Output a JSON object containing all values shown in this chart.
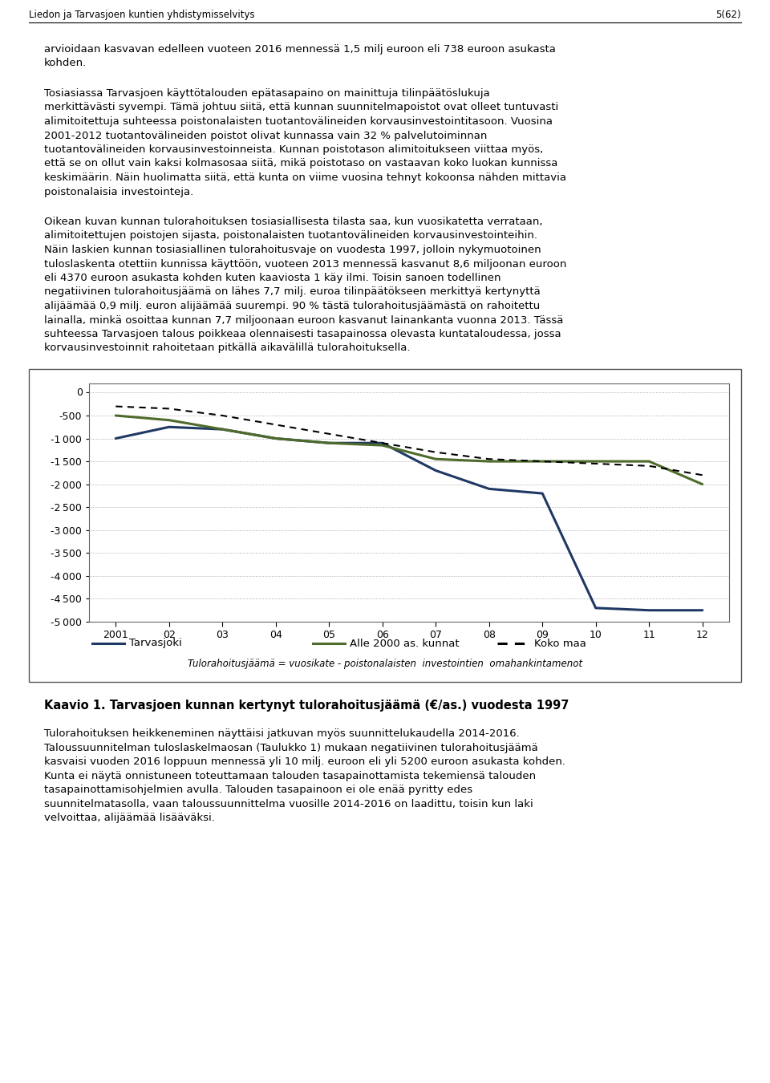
{
  "page_header_left": "Liedon ja Tarvasjoen kuntien yhdistymisselvitys",
  "page_header_right": "5(62)",
  "para1": "arvioidaan kasvavan edelleen vuoteen 2016 mennessä 1,5 milj euroon eli 738 euroon asukasta kohden.",
  "para2": "Tosiasiassa  Tarvasjoen käyttötalouden epätasapaino on mainittuja tilinpäätöslukuja merkittävästi syvempi.  Tämä johtuu siitä, että kunnan suunnitelmapoistot ovat olleet tuntuvasti alimitoitettuja suhteessa poistonalaisten  tuotantovälineiden korvausinvestointitasoon.  Vuosina 2001-2012  tuotantovälineiden poistot olivat kunnassa vain 32 % palvelutoiminnan  tuotantovälineiden korvausinvestoinneista.  Kunnan poistotason alimitoitukseen viittaa myös, että se on ollut vain kaksi kolmasosaa siitä, mikä poistotaso on vastaavan koko luokan kunnissa keskimäärin.  Näin huolimatta siitä, että kunta on viime vuosina tehnyt kokoonsa nähden mittavia poistonalaisia investointeja.",
  "para3": "Oikean kuvan kunnan tulorahoituksen tosiasiallisesta tilasta saa, kun vuosikatetta verrataan,  alimitoitettujen poistojen sijasta, poistonalaisten tuotantovälineiden korvausinvestointeihin.  Näin laskien kunnan tosiasiallinen tulorahoitusvaje on vuodesta 1997, jolloin nykymuotoinen tuloslaskenta otettiin kunnissa käyttöön,  vuoteen 2013 mennessä kasvanut  8,6 miljoonan  euroon eli 4370  euroon asukasta kohden kuten kaaviosta 1 käy ilmi.  Toisin sanoen todellinen negatiivinen tulorahoitusjäämä on lähes 7,7 milj. euroa tilinpäätökseen merkittyä kertynyttä alijäämää 0,9 milj. euron alijäämää suurempi.   90 % tästä tulorahoitusjäämästä on rahoitettu lainalla, minkä osoittaa kunnan  7,7 miljoonaan euroon kasvanut lainankanta vuonna 2013.  Tässä  suhteessa Tarvasjoen talous poikkeaa olennaisesti tasapainossa olevasta kuntataloudessa, jossa  korvausinvestoinnit rahoitetaan pitkällä aikavälillä tulorahoituksella.",
  "para4": "Tulorahoituksen heikkeneminen näyttäisi jatkuvan myös suunnittelukaudella 2014-2016. Taloussuunnitelman tuloslaskelmaosan  (Taulukko 1) mukaan  negatiivinen tulorahoitusjäämä  kasvaisi vuoden  2016 loppuun mennessä yli 10 milj. euroon eli yli 5200 euroon asukasta kohden.  Kunta ei näytä onnistuneen toteuttamaan talouden tasapainottamista tekemiensä talouden tasapainottamisohjelmien avulla. Talouden tasapainoon ei ole enää pyritty edes suunnitelmatasolla, vaan taloussuunnittelma  vuosille 2014-2016 on laadittu, toisin kun laki velvoittaa, alijäämää lisääväksi.",
  "years": [
    2001,
    2002,
    2003,
    2004,
    2005,
    2006,
    2007,
    2008,
    2009,
    2010,
    2011,
    2012
  ],
  "tarvasjoki": [
    -1000,
    -750,
    -800,
    -1000,
    -1100,
    -1100,
    -1700,
    -2100,
    -2200,
    -4700,
    -4750,
    -4750
  ],
  "alle2000": [
    -500,
    -600,
    -800,
    -1000,
    -1100,
    -1150,
    -1450,
    -1500,
    -1500,
    -1500,
    -1500,
    -2000
  ],
  "koko_maa": [
    -300,
    -350,
    -500,
    -700,
    -900,
    -1100,
    -1300,
    -1450,
    -1500,
    -1550,
    -1600,
    -1800
  ],
  "tarvasjoki_color": "#1F3864",
  "alle2000_color": "#4E6B2B",
  "koko_maa_color": "#000000",
  "ylim": [
    -5000,
    200
  ],
  "yticks": [
    0,
    -500,
    -1000,
    -1500,
    -2000,
    -2500,
    -3000,
    -3500,
    -4000,
    -4500,
    -5000
  ],
  "xlabel_labels": [
    "2001",
    "02",
    "03",
    "04",
    "05",
    "06",
    "07",
    "08",
    "09",
    "10",
    "11",
    "12"
  ],
  "legend_tarvasjoki": "Tarvasjoki",
  "legend_alle2000": "Alle 2000 as. kunnat",
  "legend_koko_maa": "Koko maa",
  "chart_caption": "Tulorahoitusjäämä = vuosikate - poistonalaisten  investointien  omahankintamenot",
  "kaavio_caption": "Kaavio 1. Tarvasjoen kunnan kertynyt tulorahoitusjäämä (€/as.) vuodesta 1997",
  "bg_color": "#FFFFFF",
  "grid_color": "#AAAAAA",
  "body_fontsize": 9.5,
  "header_fontsize": 8.5
}
